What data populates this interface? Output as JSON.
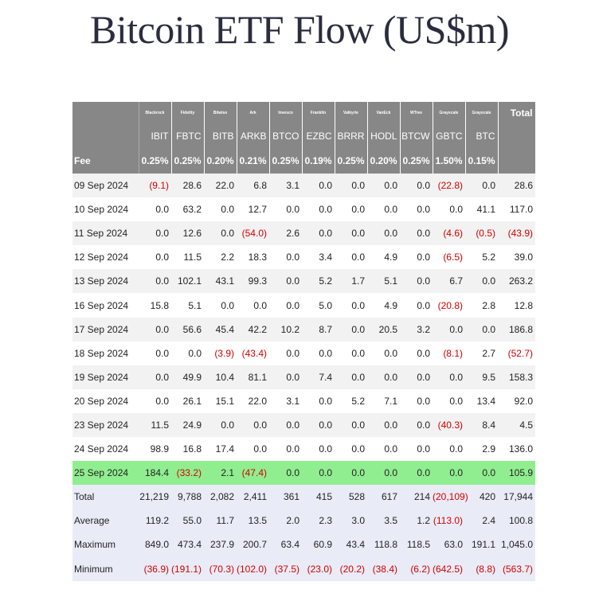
{
  "chart_data": {
    "type": "table",
    "title": "Bitcoin ETF Flow (US$m)",
    "issuers": [
      "Blackrock",
      "Fidelity",
      "Bitwise",
      "Ark",
      "Invesco",
      "Franklin",
      "Valkyrie",
      "VanEck",
      "WTree",
      "Grayscale",
      "Grayscale"
    ],
    "total_header": "Total",
    "tickers": [
      "IBIT",
      "FBTC",
      "BITB",
      "ARKB",
      "BTCO",
      "EZBC",
      "BRRR",
      "HODL",
      "BTCW",
      "GBTC",
      "BTC"
    ],
    "fee_label": "Fee",
    "fees": [
      "0.25%",
      "0.25%",
      "0.20%",
      "0.21%",
      "0.25%",
      "0.19%",
      "0.25%",
      "0.20%",
      "0.25%",
      "1.50%",
      "0.15%"
    ],
    "highlight_color": "#90ee90",
    "negative_color": "#d40000",
    "rows": [
      {
        "date": "09 Sep 2024",
        "values": [
          "(9.1)",
          "28.6",
          "22.0",
          "6.8",
          "3.1",
          "0.0",
          "0.0",
          "0.0",
          "0.0",
          "(22.8)",
          "0.0",
          "28.6"
        ]
      },
      {
        "date": "10 Sep 2024",
        "values": [
          "0.0",
          "63.2",
          "0.0",
          "12.7",
          "0.0",
          "0.0",
          "0.0",
          "0.0",
          "0.0",
          "0.0",
          "41.1",
          "117.0"
        ]
      },
      {
        "date": "11 Sep 2024",
        "values": [
          "0.0",
          "12.6",
          "0.0",
          "(54.0)",
          "2.6",
          "0.0",
          "0.0",
          "0.0",
          "0.0",
          "(4.6)",
          "(0.5)",
          "(43.9)"
        ]
      },
      {
        "date": "12 Sep 2024",
        "values": [
          "0.0",
          "11.5",
          "2.2",
          "18.3",
          "0.0",
          "3.4",
          "0.0",
          "4.9",
          "0.0",
          "(6.5)",
          "5.2",
          "39.0"
        ]
      },
      {
        "date": "13 Sep 2024",
        "values": [
          "0.0",
          "102.1",
          "43.1",
          "99.3",
          "0.0",
          "5.2",
          "1.7",
          "5.1",
          "0.0",
          "6.7",
          "0.0",
          "263.2"
        ]
      },
      {
        "date": "16 Sep 2024",
        "values": [
          "15.8",
          "5.1",
          "0.0",
          "0.0",
          "0.0",
          "5.0",
          "0.0",
          "4.9",
          "0.0",
          "(20.8)",
          "2.8",
          "12.8"
        ]
      },
      {
        "date": "17 Sep 2024",
        "values": [
          "0.0",
          "56.6",
          "45.4",
          "42.2",
          "10.2",
          "8.7",
          "0.0",
          "20.5",
          "3.2",
          "0.0",
          "0.0",
          "186.8"
        ]
      },
      {
        "date": "18 Sep 2024",
        "values": [
          "0.0",
          "0.0",
          "(3.9)",
          "(43.4)",
          "0.0",
          "0.0",
          "0.0",
          "0.0",
          "0.0",
          "(8.1)",
          "2.7",
          "(52.7)"
        ]
      },
      {
        "date": "19 Sep 2024",
        "values": [
          "0.0",
          "49.9",
          "10.4",
          "81.1",
          "0.0",
          "7.4",
          "0.0",
          "0.0",
          "0.0",
          "0.0",
          "9.5",
          "158.3"
        ]
      },
      {
        "date": "20 Sep 2024",
        "values": [
          "0.0",
          "26.1",
          "15.1",
          "22.0",
          "3.1",
          "0.0",
          "5.2",
          "7.1",
          "0.0",
          "0.0",
          "13.4",
          "92.0"
        ]
      },
      {
        "date": "23 Sep 2024",
        "values": [
          "11.5",
          "24.9",
          "0.0",
          "0.0",
          "0.0",
          "0.0",
          "0.0",
          "0.0",
          "0.0",
          "(40.3)",
          "8.4",
          "4.5"
        ]
      },
      {
        "date": "24 Sep 2024",
        "values": [
          "98.9",
          "16.8",
          "17.4",
          "0.0",
          "0.0",
          "0.0",
          "0.0",
          "0.0",
          "0.0",
          "0.0",
          "2.9",
          "136.0"
        ]
      },
      {
        "date": "25 Sep 2024",
        "highlight": true,
        "values": [
          "184.4",
          "(33.2)",
          "2.1",
          "(47.4)",
          "0.0",
          "0.0",
          "0.0",
          "0.0",
          "0.0",
          "0.0",
          "0.0",
          "105.9"
        ]
      }
    ],
    "summary": [
      {
        "label": "Total",
        "values": [
          "21,219",
          "9,788",
          "2,082",
          "2,411",
          "361",
          "415",
          "528",
          "617",
          "214",
          "(20,109)",
          "420",
          "17,944"
        ]
      },
      {
        "label": "Average",
        "values": [
          "119.2",
          "55.0",
          "11.7",
          "13.5",
          "2.0",
          "2.3",
          "3.0",
          "3.5",
          "1.2",
          "(113.0)",
          "2.4",
          "100.8"
        ]
      },
      {
        "label": "Maximum",
        "values": [
          "849.0",
          "473.4",
          "237.9",
          "200.7",
          "63.4",
          "60.9",
          "43.4",
          "118.8",
          "118.5",
          "63.0",
          "191.1",
          "1,045.0"
        ]
      },
      {
        "label": "Minimum",
        "values": [
          "(36.9)",
          "(191.1)",
          "(70.3)",
          "(102.0)",
          "(37.5)",
          "(23.0)",
          "(20.2)",
          "(38.4)",
          "(6.2)",
          "(642.5)",
          "(8.8)",
          "(563.7)"
        ]
      }
    ]
  }
}
